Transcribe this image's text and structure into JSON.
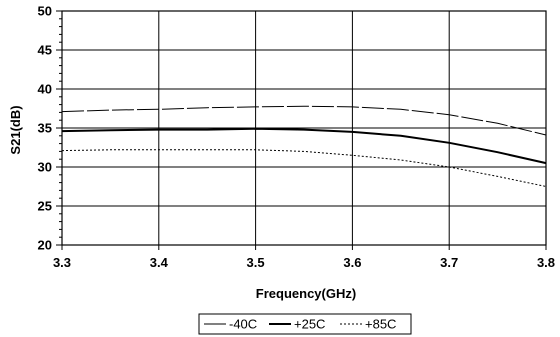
{
  "chart_data": {
    "type": "line",
    "title": "",
    "xlabel": "Frequency(GHz)",
    "ylabel": "S21(dB)",
    "xlim": [
      3.3,
      3.8
    ],
    "ylim": [
      20,
      50
    ],
    "xticks": [
      "3.3",
      "3.4",
      "3.5",
      "3.6",
      "3.7",
      "3.8"
    ],
    "yticks": [
      "20",
      "25",
      "30",
      "35",
      "40",
      "45",
      "50"
    ],
    "grid": true,
    "legend_position": "bottom",
    "series": [
      {
        "name": "-40C",
        "style": "long-dash",
        "color": "#000000",
        "x": [
          3.3,
          3.35,
          3.4,
          3.45,
          3.5,
          3.55,
          3.6,
          3.65,
          3.7,
          3.75,
          3.8
        ],
        "y": [
          37.1,
          37.3,
          37.4,
          37.6,
          37.7,
          37.8,
          37.7,
          37.4,
          36.7,
          35.6,
          34.1
        ]
      },
      {
        "name": "+25C",
        "style": "solid",
        "color": "#000000",
        "x": [
          3.3,
          3.35,
          3.4,
          3.45,
          3.5,
          3.55,
          3.6,
          3.65,
          3.7,
          3.75,
          3.8
        ],
        "y": [
          34.6,
          34.7,
          34.8,
          34.8,
          34.9,
          34.8,
          34.5,
          34.0,
          33.1,
          31.9,
          30.5
        ]
      },
      {
        "name": "+85C",
        "style": "dotted",
        "color": "#000000",
        "x": [
          3.3,
          3.35,
          3.4,
          3.45,
          3.5,
          3.55,
          3.6,
          3.65,
          3.7,
          3.75,
          3.8
        ],
        "y": [
          32.1,
          32.2,
          32.2,
          32.2,
          32.2,
          32.0,
          31.5,
          30.9,
          30.0,
          28.8,
          27.5
        ]
      }
    ]
  }
}
